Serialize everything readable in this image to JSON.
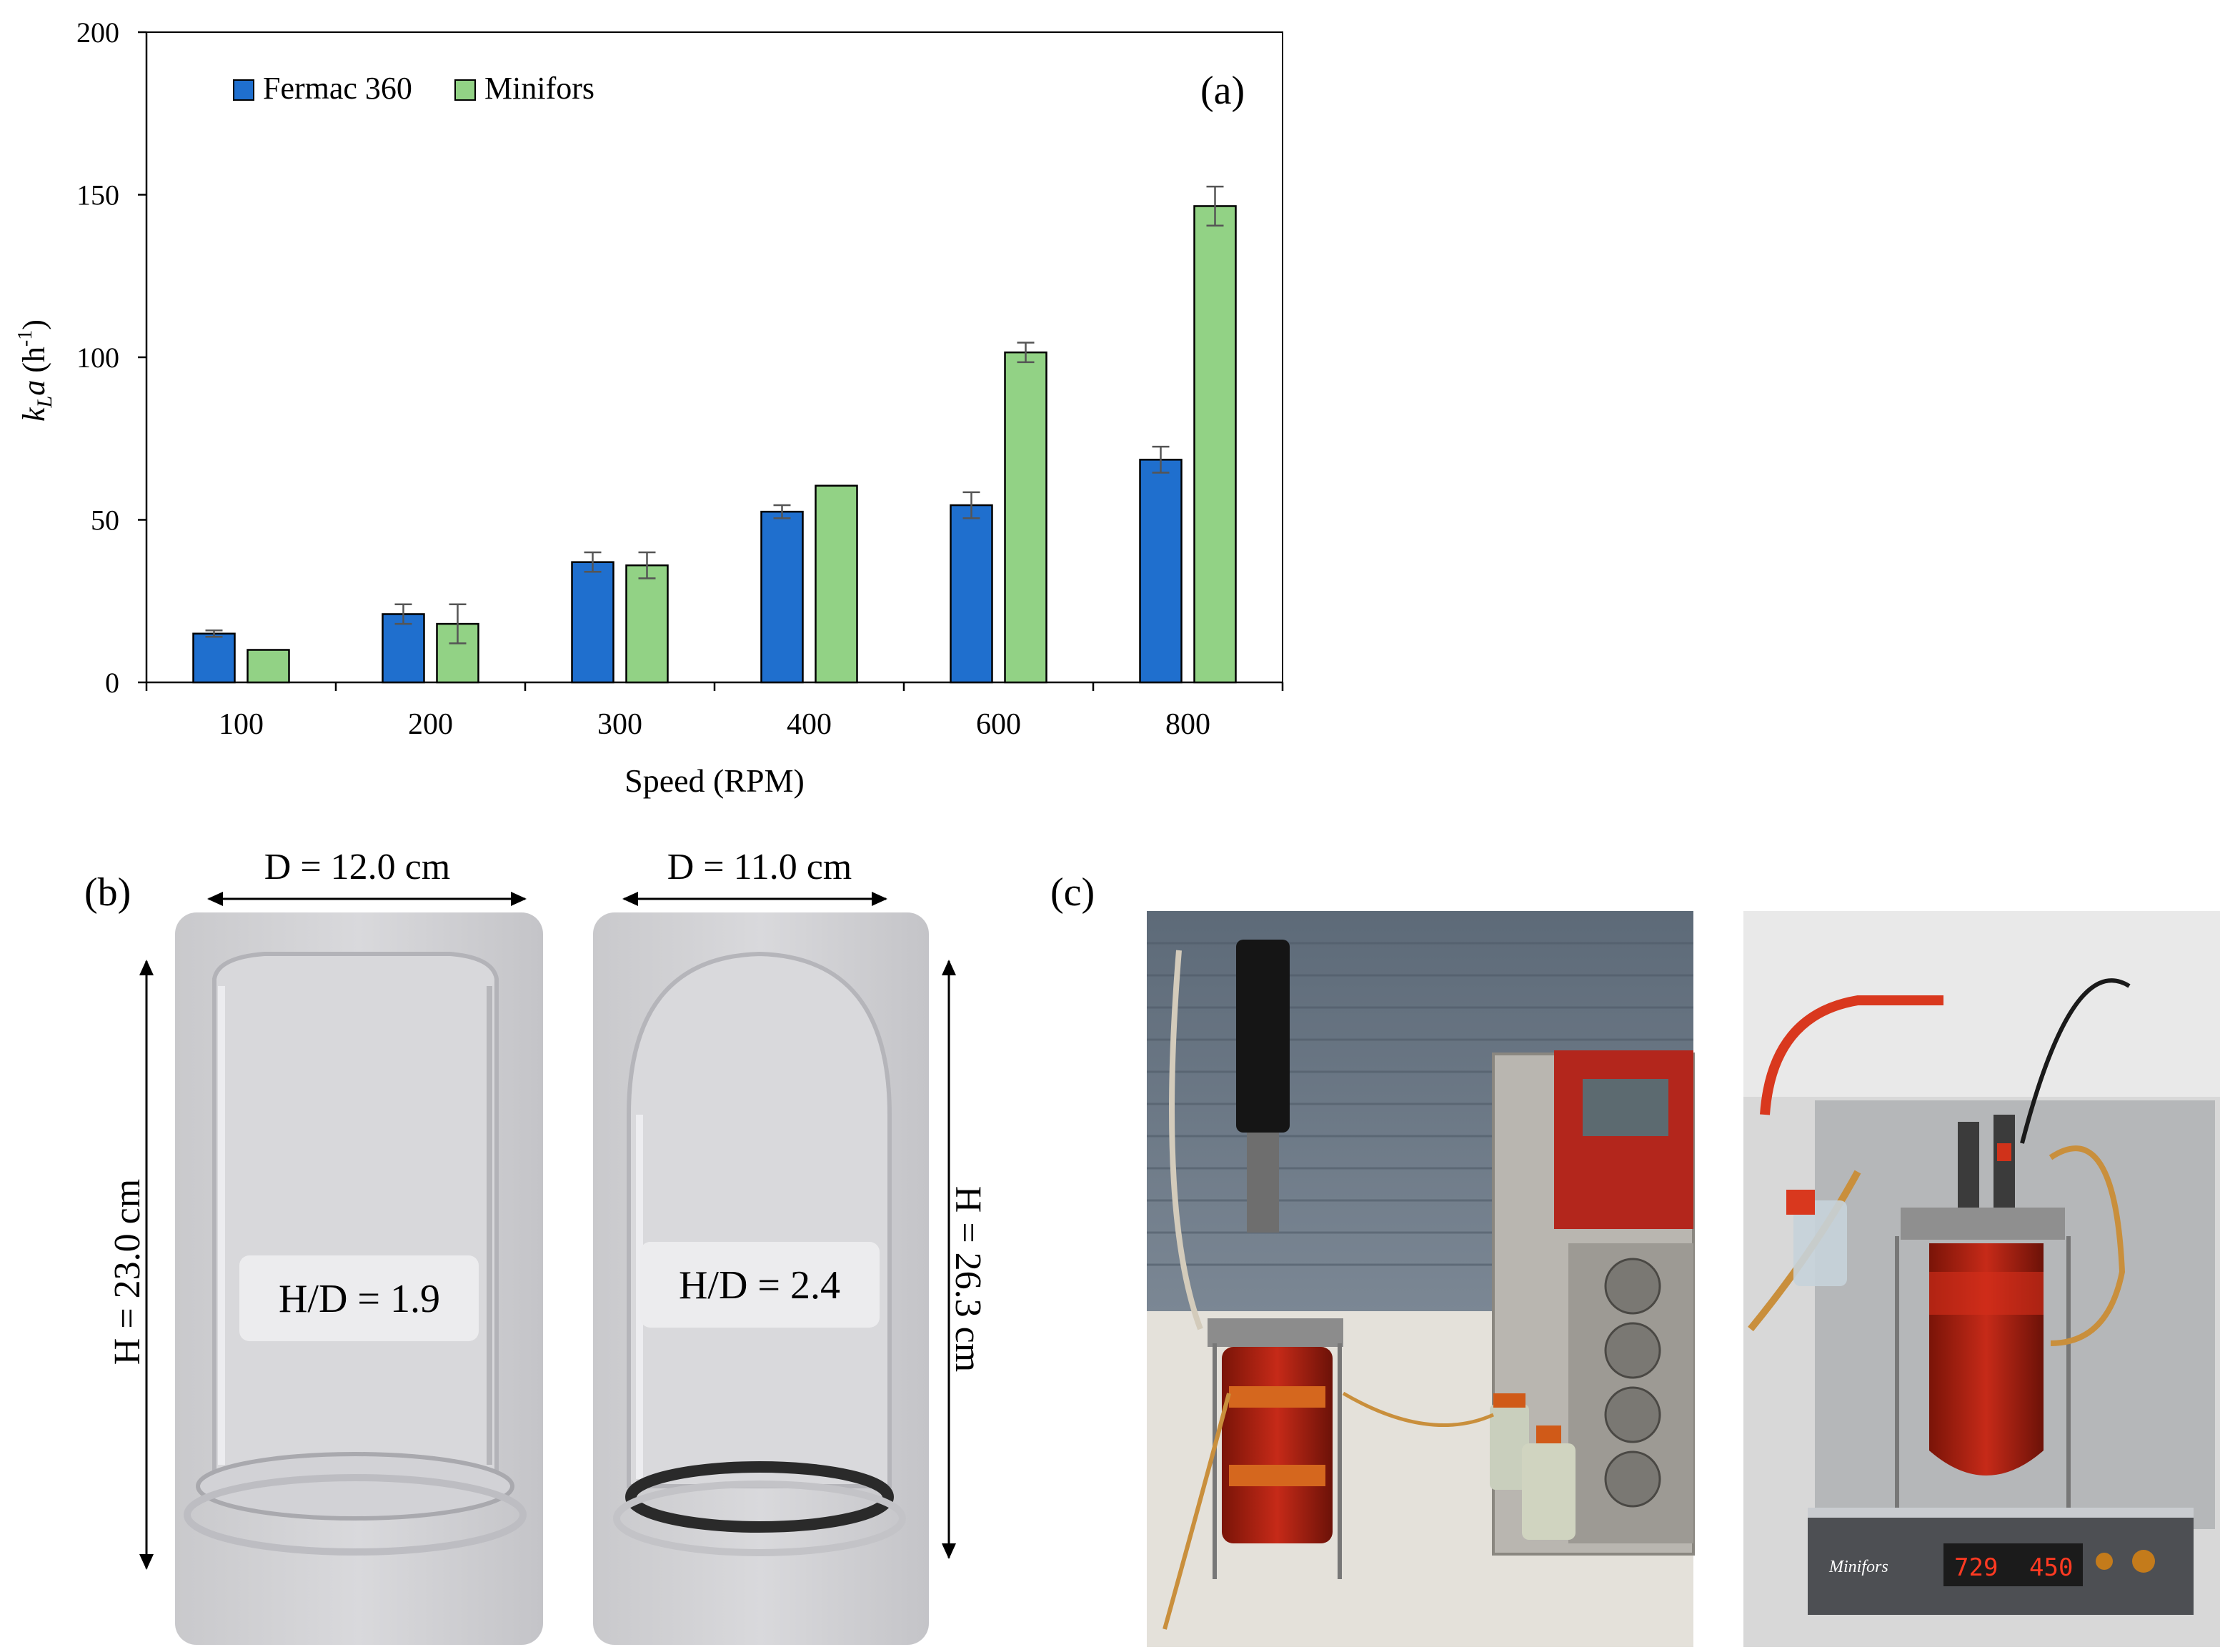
{
  "panels": {
    "a": "(a)",
    "b": "(b)",
    "c": "(c)"
  },
  "chart_data": {
    "type": "bar",
    "title": "",
    "xlabel": "Speed  (RPM)",
    "ylabel": "k",
    "ylabel_sub": "L",
    "ylabel_tail": "a",
    "ylabel_unit": "(h",
    "ylabel_unit_sup": "-1",
    "ylabel_unit_close": ")",
    "ylim": [
      0,
      200
    ],
    "yticks": [
      0,
      50,
      100,
      150,
      200
    ],
    "categories": [
      "100",
      "200",
      "300",
      "400",
      "600",
      "800"
    ],
    "legend_position": "top-left",
    "series": [
      {
        "name": "Fermac 360",
        "color": "#1f6fce",
        "values": [
          15,
          21,
          37,
          52.5,
          54.5,
          68.5
        ],
        "errors": [
          1,
          3,
          3,
          2,
          4,
          4
        ]
      },
      {
        "name": "Minifors",
        "color": "#92d285",
        "values": [
          10,
          18,
          36,
          60.5,
          101.5,
          146.5
        ],
        "errors": [
          0,
          6,
          4,
          0,
          3,
          6
        ]
      }
    ]
  },
  "vessels": [
    {
      "diameter": "D = 12.0 cm",
      "height": "H = 23.0 cm",
      "ratio": "H/D = 1.9"
    },
    {
      "diameter": "D = 11.0 cm",
      "height": "H = 26.3 cm",
      "ratio": "H/D = 2.4"
    }
  ],
  "photos": {
    "minifors_brand": "Minifors",
    "display_left": "729",
    "display_right": "450"
  },
  "colors": {
    "fermac": "#1f6fce",
    "minifors": "#92d285",
    "axis": "#000000",
    "error_bar": "#555555"
  }
}
